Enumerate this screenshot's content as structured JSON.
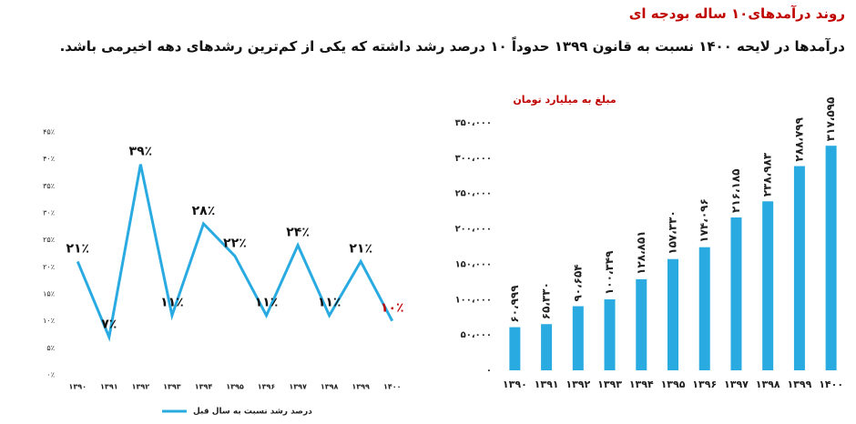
{
  "header": {
    "title": "روند درآمدهای۱۰ ساله بودجه ای",
    "subtitle": "درآمدها در لایحه ۱۴۰۰ نسبت به قانون ۱۳۹۹ حدوداً ۱۰ درصد رشد داشته که  یکی از کم‌ترین رشدهای دهه اخیرمی باشد."
  },
  "chart_data": [
    {
      "type": "line",
      "categories": [
        "۱۳۹۰",
        "۱۳۹۱",
        "۱۳۹۲",
        "۱۳۹۳",
        "۱۳۹۴",
        "۱۳۹۵",
        "۱۳۹۶",
        "۱۳۹۷",
        "۱۳۹۸",
        "۱۳۹۹",
        "۱۴۰۰"
      ],
      "series": [
        {
          "name": "درصد رشد نسبت به سال قبل",
          "color": "#29abe2",
          "values": [
            21,
            7,
            39,
            11,
            28,
            22,
            11,
            24,
            11,
            21,
            10
          ],
          "value_labels": [
            "۲۱٪",
            "۷٪",
            "۳۹٪",
            "۱۱٪",
            "۲۸٪",
            "۲۲٪",
            "۱۱٪",
            "۲۴٪",
            "۱۱٪",
            "۲۱٪",
            "۱۰٪"
          ],
          "value_label_colors": [
            "#111",
            "#111",
            "#111",
            "#111",
            "#111",
            "#111",
            "#111",
            "#111",
            "#111",
            "#111",
            "#c00000"
          ]
        }
      ],
      "ylim": [
        0,
        45
      ],
      "yticks": [
        {
          "value": 0,
          "label": "۰٪"
        },
        {
          "value": 5,
          "label": "۵٪"
        },
        {
          "value": 10,
          "label": "۱۰٪"
        },
        {
          "value": 15,
          "label": "۱۵٪"
        },
        {
          "value": 20,
          "label": "۲۰٪"
        },
        {
          "value": 25,
          "label": "۲۵٪"
        },
        {
          "value": 30,
          "label": "۳۰٪"
        },
        {
          "value": 35,
          "label": "۳۵٪"
        },
        {
          "value": 40,
          "label": "۴۰٪"
        },
        {
          "value": 45,
          "label": "۴۵٪"
        }
      ],
      "legend": "bottom"
    },
    {
      "type": "bar",
      "title": "مبلغ به میلیارد تومان",
      "title_color": "#c00000",
      "categories": [
        "۱۳۹۰",
        "۱۳۹۱",
        "۱۳۹۲",
        "۱۳۹۳",
        "۱۳۹۴",
        "۱۳۹۵",
        "۱۳۹۶",
        "۱۳۹۷",
        "۱۳۹۸",
        "۱۳۹۹",
        "۱۴۰۰"
      ],
      "values": [
        60999,
        65330,
        90654,
        100349,
        128851,
        157330,
        174096,
        216185,
        238983,
        288799,
        317595
      ],
      "value_labels": [
        "۶۰،۹۹۹",
        "۶۵،۳۳۰",
        "۹۰،۶۵۴",
        "۱۰۰،۳۴۹",
        "۱۲۸،۸۵۱",
        "۱۵۷،۳۳۰",
        "۱۷۴،۰۹۶",
        "۲۱۶،۱۸۵",
        "۲۳۸،۹۸۳",
        "۲۸۸،۷۹۹",
        "۳۱۷،۵۹۵"
      ],
      "color": "#29abe2",
      "ylim": [
        0,
        350000
      ],
      "yticks": [
        {
          "value": 0,
          "label": "۰"
        },
        {
          "value": 50000,
          "label": "۵۰،۰۰۰"
        },
        {
          "value": 100000,
          "label": "۱۰۰،۰۰۰"
        },
        {
          "value": 150000,
          "label": "۱۵۰،۰۰۰"
        },
        {
          "value": 200000,
          "label": "۲۰۰،۰۰۰"
        },
        {
          "value": 250000,
          "label": "۲۵۰،۰۰۰"
        },
        {
          "value": 300000,
          "label": "۳۰۰،۰۰۰"
        },
        {
          "value": 350000,
          "label": "۳۵۰،۰۰۰"
        }
      ]
    }
  ]
}
